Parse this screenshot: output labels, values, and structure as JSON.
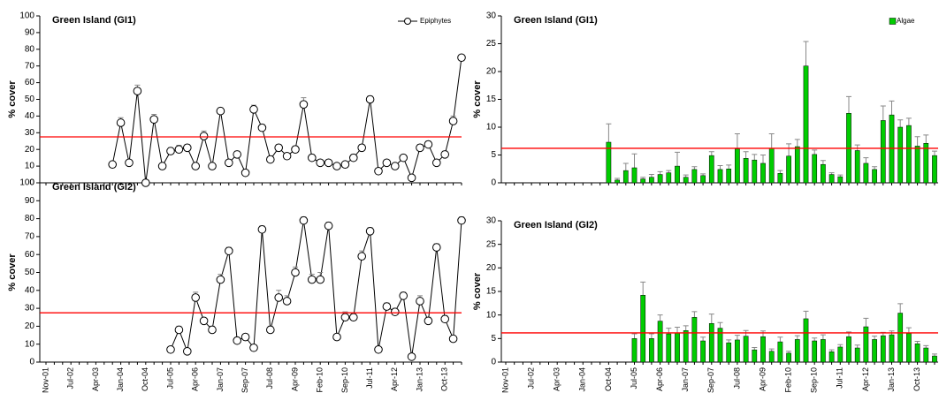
{
  "chart_data": [
    {
      "type": "line",
      "title": "Green Island (GI1)",
      "y_label": "% cover",
      "categories": [
        null,
        null,
        null,
        null,
        null,
        null,
        null,
        null,
        null,
        null,
        null,
        null,
        null,
        null,
        null,
        null,
        null,
        null,
        null,
        null,
        null,
        null,
        null,
        null,
        null,
        null,
        null,
        null,
        null,
        null,
        null,
        null,
        null,
        null,
        null,
        null,
        null,
        null,
        null,
        null,
        null,
        null,
        null,
        null,
        null,
        null,
        null,
        null,
        null,
        null,
        null
      ],
      "series": [
        {
          "name": "Epiphytes",
          "color": "#000000",
          "values": [
            null,
            null,
            null,
            null,
            null,
            null,
            null,
            null,
            11,
            36,
            12,
            55,
            0,
            38,
            10,
            19,
            20,
            21,
            10,
            28,
            10,
            43,
            12,
            17,
            6,
            44,
            33,
            14,
            21,
            16,
            20,
            47,
            15,
            12,
            12,
            10,
            11,
            15,
            21,
            50,
            7,
            12,
            10,
            15,
            3,
            21,
            23,
            12,
            17,
            37,
            75
          ],
          "errors": [
            null,
            null,
            null,
            null,
            null,
            null,
            null,
            null,
            1.5,
            3,
            1.5,
            3.5,
            0,
            3,
            1.5,
            2,
            2.5,
            2,
            1.5,
            3,
            1.5,
            2,
            1.5,
            2,
            1.5,
            2.5,
            2,
            1.5,
            2,
            1.5,
            2,
            4,
            2,
            1.5,
            1.5,
            1.5,
            1.5,
            2,
            2,
            2,
            1.5,
            1.5,
            1.5,
            1.5,
            1,
            2,
            2,
            1.5,
            2,
            3,
            1.5
          ]
        }
      ],
      "reference_line": {
        "value": 27.5,
        "color": "#ff0000"
      },
      "ylim": [
        0,
        100
      ],
      "yticks": [
        0,
        10,
        20,
        30,
        40,
        50,
        60,
        70,
        80,
        90,
        100
      ],
      "legend": "upper right"
    },
    {
      "type": "bar",
      "title": "Green Island (GI1)",
      "y_label": "% cover",
      "categories": [
        null,
        null,
        null,
        null,
        null,
        null,
        null,
        null,
        null,
        null,
        null,
        null,
        null,
        null,
        null,
        null,
        null,
        null,
        null,
        null,
        null,
        null,
        null,
        null,
        null,
        null,
        null,
        null,
        null,
        null,
        null,
        null,
        null,
        null,
        null,
        null,
        null,
        null,
        null,
        null,
        null,
        null,
        null,
        null,
        null,
        null,
        null,
        null,
        null,
        null,
        null
      ],
      "series": [
        {
          "name": "Algae",
          "color": "#00cc00",
          "values": [
            null,
            null,
            null,
            null,
            null,
            null,
            null,
            null,
            null,
            null,
            null,
            null,
            7.3,
            0.5,
            2.2,
            2.7,
            0.7,
            1,
            1.5,
            1.8,
            3,
            1,
            2.4,
            1.3,
            4.9,
            2.4,
            2.5,
            6.1,
            4.4,
            4.1,
            3.5,
            6.2,
            1.7,
            4.8,
            6.5,
            21,
            5.1,
            3.3,
            1.5,
            1.1,
            12.5,
            5.8,
            3.5,
            2.4,
            11.2,
            12.2,
            10,
            10.3,
            6.6,
            7.1,
            4.9
          ],
          "errors": [
            null,
            null,
            null,
            null,
            null,
            null,
            null,
            null,
            null,
            null,
            null,
            null,
            3.3,
            0.3,
            1.3,
            2.5,
            0.3,
            0.5,
            0.5,
            0.4,
            2.5,
            0.4,
            0.5,
            0.3,
            0.7,
            0.7,
            0.7,
            2.7,
            1.2,
            1,
            1.5,
            2.6,
            0.5,
            2.2,
            1.3,
            4.4,
            0.8,
            0.7,
            0.3,
            0.3,
            3,
            1,
            1,
            0.5,
            2.6,
            2.5,
            1.3,
            1.3,
            1.7,
            1.5,
            0.8
          ]
        }
      ],
      "reference_line": {
        "value": 6.2,
        "color": "#ff0000"
      },
      "ylim": [
        0,
        30
      ],
      "yticks": [
        0,
        5,
        10,
        15,
        20,
        25,
        30
      ],
      "legend": "upper right"
    },
    {
      "type": "line",
      "title": "Green Island (GI2)",
      "y_label": "% cover",
      "categories": [
        "Nov-01",
        null,
        null,
        "Jul-02",
        null,
        null,
        "Apr-03",
        null,
        null,
        "Jan-04",
        null,
        null,
        "Oct-04",
        null,
        null,
        "Jul-05",
        null,
        null,
        "Apr-06",
        null,
        null,
        "Jan-07",
        null,
        null,
        "Sep-07",
        null,
        null,
        "Jul-08",
        null,
        null,
        "Apr-09",
        null,
        null,
        "Feb-10",
        null,
        null,
        "Sep-10",
        null,
        null,
        "Jul-11",
        null,
        null,
        "Apr-12",
        null,
        null,
        "Jan-13",
        null,
        null,
        "Oct-13",
        null,
        null
      ],
      "series": [
        {
          "color": "#000000",
          "values": [
            null,
            null,
            null,
            null,
            null,
            null,
            null,
            null,
            null,
            null,
            null,
            null,
            null,
            null,
            null,
            7,
            18,
            6,
            36,
            23,
            18,
            46,
            62,
            12,
            14,
            8,
            74,
            18,
            36,
            34,
            50,
            79,
            46,
            46,
            76,
            14,
            25,
            25,
            59,
            73,
            7,
            31,
            28,
            37,
            3,
            34,
            23,
            64,
            24,
            13,
            79
          ],
          "errors": [
            null,
            null,
            null,
            null,
            null,
            null,
            null,
            null,
            null,
            null,
            null,
            null,
            null,
            null,
            null,
            1,
            2,
            1,
            3,
            1.5,
            2,
            3,
            2,
            1.5,
            1.5,
            1.5,
            2,
            2,
            4,
            3,
            3,
            2,
            3,
            4,
            2,
            1.5,
            3,
            2,
            3,
            2,
            1,
            2,
            2,
            2,
            1,
            3,
            2,
            2,
            2,
            1,
            2
          ]
        }
      ],
      "reference_line": {
        "value": 27.5,
        "color": "#ff0000"
      },
      "ylim": [
        0,
        100
      ],
      "yticks": [
        0,
        10,
        20,
        30,
        40,
        50,
        60,
        70,
        80,
        90,
        100
      ]
    },
    {
      "type": "bar",
      "title": "Green Island (GI2)",
      "y_label": "% cover",
      "categories": [
        "Nov-01",
        null,
        null,
        "Jul-02",
        null,
        null,
        "Apr-03",
        null,
        null,
        "Jan-04",
        null,
        null,
        "Oct-04",
        null,
        null,
        "Jul-05",
        null,
        null,
        "Apr-06",
        null,
        null,
        "Jan-07",
        null,
        null,
        "Sep-07",
        null,
        null,
        "Jul-08",
        null,
        null,
        "Apr-09",
        null,
        null,
        "Feb-10",
        null,
        null,
        "Sep-10",
        null,
        null,
        "Jul-11",
        null,
        null,
        "Apr-12",
        null,
        null,
        "Jan-13",
        null,
        null,
        "Oct-13",
        null,
        null
      ],
      "series": [
        {
          "color": "#00cc00",
          "values": [
            null,
            null,
            null,
            null,
            null,
            null,
            null,
            null,
            null,
            null,
            null,
            null,
            null,
            null,
            null,
            5,
            14.2,
            5,
            8.7,
            6,
            6.2,
            6.7,
            9.5,
            4.5,
            8.2,
            7.2,
            4.1,
            4.7,
            5.5,
            2.6,
            5.4,
            2.3,
            4.3,
            1.9,
            4.8,
            9.2,
            4.5,
            4.8,
            2.2,
            3.2,
            5.4,
            3,
            7.5,
            4.8,
            5.6,
            5.8,
            10.4,
            6.1,
            3.9,
            3,
            1.3
          ],
          "errors": [
            null,
            null,
            null,
            null,
            null,
            null,
            null,
            null,
            null,
            null,
            null,
            null,
            null,
            null,
            null,
            1,
            2.8,
            1,
            1.3,
            1.2,
            1.2,
            1,
            1.2,
            0.8,
            2,
            1.2,
            0.6,
            1,
            1.2,
            0.5,
            1.2,
            0.5,
            1,
            0.4,
            0.8,
            1.6,
            0.6,
            1,
            0.4,
            0.5,
            1,
            0.6,
            1.8,
            0.7,
            0.7,
            0.8,
            2,
            1.2,
            0.5,
            0.5,
            0.4
          ]
        }
      ],
      "reference_line": {
        "value": 6.2,
        "color": "#ff0000"
      },
      "ylim": [
        0,
        30
      ],
      "yticks": [
        0,
        5,
        10,
        15,
        20,
        25,
        30
      ]
    }
  ]
}
